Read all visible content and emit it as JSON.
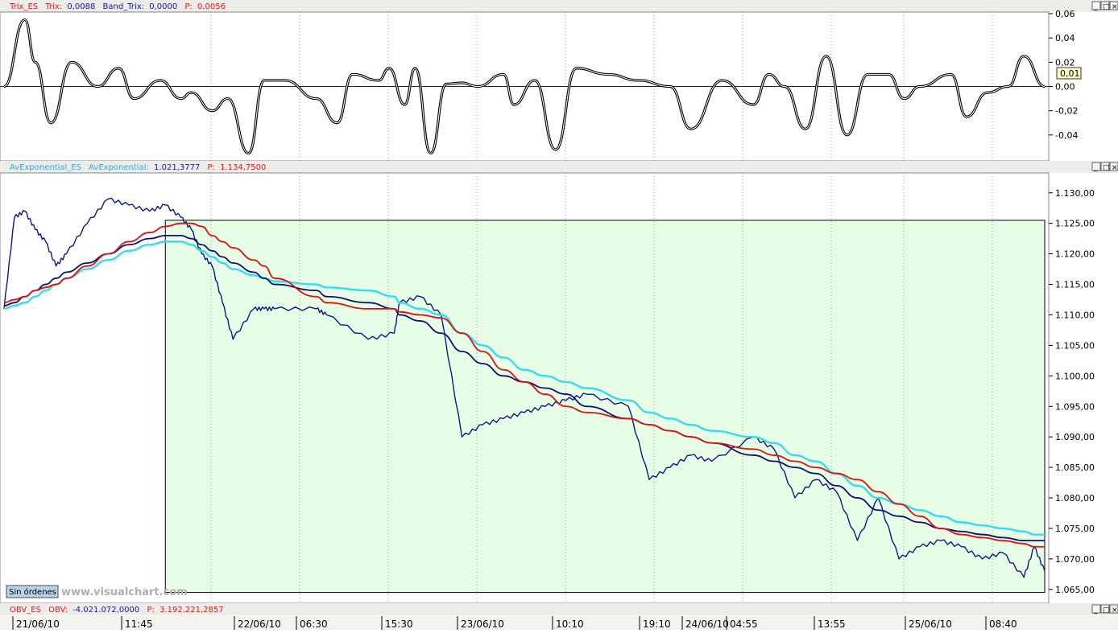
{
  "colors": {
    "background": "#ffffff",
    "header_bg": "#ecece8",
    "trix_line": "#000000",
    "trix_zero_line": "#1a1a8c",
    "price_dark_blue": "#0a1a80",
    "price_black": "#000000",
    "ema_red": "#dd1111",
    "ema_navy": "#101070",
    "ema_cyan": "#33ddee",
    "shaded_region": "#e8fde6",
    "label_red": "#cc2222",
    "label_navy": "#1a1a8c"
  },
  "window_buttons": [
    "_",
    "□",
    "×"
  ],
  "trix_panel": {
    "series_name": "Trix_ES",
    "trix_label": "Trix:",
    "trix_value": "0,0088",
    "band_label": "Band_Trix:",
    "band_value": "0,0000",
    "p_label": "P:",
    "p_value": "0,0056",
    "current_marker": "0,01",
    "y_ticks": [
      "0,06",
      "0,04",
      "0,02",
      "0,00",
      "-0,02",
      "-0,04"
    ]
  },
  "price_panel": {
    "series_name": "AvExponential_ES",
    "av_label": "AvExponential:",
    "av_value": "1.021,3777",
    "p_label": "P:",
    "p_value": "1.134,7500",
    "y_ticks": [
      "1.130,00",
      "1.125,00",
      "1.120,00",
      "1.115,00",
      "1.110,00",
      "1.105,00",
      "1.100,00",
      "1.095,00",
      "1.090,00",
      "1.085,00",
      "1.080,00",
      "1.075,00",
      "1.070,00",
      "1.065,00"
    ],
    "sin_ordenes": "Sin órdenes",
    "watermark": "www.visualchart.com"
  },
  "obv_panel": {
    "series_name": "OBV_ES",
    "obv_label": "OBV:",
    "obv_value": "-4.021.072,0000",
    "p_label": "P:",
    "p_value": "3.192.221,2857"
  },
  "x_axis_labels": [
    "21/06/10",
    "11:45",
    "22/06/10",
    "06:30",
    "15:30",
    "23/06/10",
    "10:10",
    "19:10",
    "24/06/10",
    "04:55",
    "13:55",
    "25/06/10",
    "08:40"
  ],
  "chart_data": [
    {
      "type": "line",
      "name": "Trix_ES",
      "ylim": [
        -0.06,
        0.06
      ],
      "zero_line": 0.0,
      "x": [
        0,
        0.02,
        0.03,
        0.045,
        0.065,
        0.09,
        0.11,
        0.125,
        0.15,
        0.17,
        0.18,
        0.2,
        0.215,
        0.235,
        0.25,
        0.27,
        0.3,
        0.32,
        0.335,
        0.36,
        0.37,
        0.385,
        0.395,
        0.41,
        0.425,
        0.44,
        0.455,
        0.48,
        0.49,
        0.51,
        0.53,
        0.55,
        0.58,
        0.61,
        0.64,
        0.66,
        0.69,
        0.72,
        0.735,
        0.75,
        0.77,
        0.79,
        0.81,
        0.83,
        0.85,
        0.865,
        0.88,
        0.91,
        0.925,
        0.945,
        0.965,
        0.98,
        1.0
      ],
      "values": [
        0.0,
        0.055,
        0.02,
        -0.03,
        0.02,
        0.0,
        0.015,
        -0.01,
        0.005,
        -0.01,
        -0.005,
        -0.02,
        -0.01,
        -0.055,
        0.005,
        0.005,
        -0.01,
        -0.03,
        0.01,
        0.005,
        0.015,
        -0.015,
        0.015,
        -0.055,
        0.002,
        0.003,
        0.0,
        0.01,
        -0.015,
        0.005,
        -0.052,
        0.015,
        0.01,
        0.005,
        0.0,
        -0.035,
        0.005,
        -0.015,
        0.01,
        0.0,
        -0.035,
        0.025,
        -0.04,
        0.01,
        0.01,
        -0.01,
        0.0,
        0.01,
        -0.025,
        -0.005,
        0.0,
        0.025,
        0.0
      ]
    },
    {
      "type": "line",
      "name": "AvExponential_ES",
      "ylim": [
        1063,
        1133
      ],
      "x": [
        0,
        0.01,
        0.02,
        0.03,
        0.04,
        0.05,
        0.06,
        0.08,
        0.1,
        0.12,
        0.14,
        0.155,
        0.17,
        0.18,
        0.19,
        0.2,
        0.21,
        0.22,
        0.24,
        0.25,
        0.26,
        0.3,
        0.31,
        0.35,
        0.375,
        0.38,
        0.4,
        0.42,
        0.44,
        0.46,
        0.48,
        0.5,
        0.52,
        0.54,
        0.56,
        0.6,
        0.62,
        0.64,
        0.66,
        0.68,
        0.72,
        0.74,
        0.76,
        0.78,
        0.8,
        0.82,
        0.84,
        0.86,
        0.88,
        0.9,
        0.92,
        0.94,
        0.96,
        0.98,
        0.99,
        1.0
      ],
      "series": [
        {
          "name": "price",
          "values": [
            1111,
            1126,
            1127,
            1124,
            1122,
            1118,
            1120,
            1125,
            1129,
            1128,
            1127,
            1128,
            1126,
            1124,
            1120,
            1118,
            1112,
            1106,
            1111,
            1111,
            1111,
            1111,
            1110,
            1106,
            1107,
            1112,
            1113,
            1110,
            1090,
            1092,
            1093,
            1094,
            1095,
            1096,
            1097,
            1095,
            1083,
            1085,
            1087,
            1086,
            1090,
            1088,
            1080,
            1083,
            1081,
            1073,
            1080,
            1070,
            1072,
            1073,
            1072,
            1070,
            1071,
            1067,
            1072,
            1068
          ]
        },
        {
          "name": "ema_red",
          "values": [
            1112,
            1112.5,
            1113,
            1114,
            1114.5,
            1115,
            1116,
            1118,
            1120,
            1122,
            1123.5,
            1124.5,
            1125,
            1125,
            1124.5,
            1123,
            1122,
            1121,
            1119,
            1118,
            1116,
            1113,
            1112,
            1111,
            1111,
            1110.5,
            1110,
            1109.5,
            1107,
            1104,
            1101,
            1099,
            1097,
            1095,
            1094,
            1093,
            1092,
            1091,
            1090,
            1089,
            1088,
            1087,
            1086,
            1085,
            1084,
            1083,
            1081,
            1079,
            1077,
            1075,
            1074,
            1073.5,
            1073,
            1072.5,
            1072,
            1072
          ]
        },
        {
          "name": "ema_navy",
          "values": [
            1111.5,
            1112,
            1113,
            1114,
            1115,
            1116,
            1117,
            1118.5,
            1120,
            1121.5,
            1122.5,
            1123,
            1123,
            1122.5,
            1121.5,
            1120.5,
            1119.5,
            1118.5,
            1117,
            1116,
            1115,
            1114,
            1113,
            1112,
            1111,
            1110,
            1109,
            1107,
            1104,
            1102,
            1100,
            1099,
            1098,
            1097,
            1095,
            1093,
            1092,
            1091,
            1090,
            1089,
            1087,
            1086,
            1085,
            1084,
            1082,
            1080,
            1078,
            1077,
            1076,
            1075,
            1074.5,
            1074,
            1073.5,
            1073,
            1073,
            1073
          ]
        },
        {
          "name": "ema_cyan",
          "values": [
            1111,
            1111.5,
            1112,
            1113,
            1114,
            1115,
            1116,
            1117.5,
            1119,
            1120.5,
            1121.5,
            1122,
            1122,
            1121.5,
            1120.5,
            1119.5,
            1118.5,
            1117.5,
            1116.5,
            1116,
            1115.5,
            1115,
            1114.5,
            1114,
            1113,
            1112,
            1111,
            1110,
            1107,
            1105,
            1103,
            1101,
            1100,
            1099,
            1098,
            1096,
            1094,
            1093,
            1092,
            1091,
            1090,
            1089,
            1087,
            1086,
            1084,
            1082,
            1080,
            1079,
            1078,
            1077,
            1076,
            1075.5,
            1075,
            1074.5,
            1074,
            1074
          ]
        }
      ],
      "shaded_region": {
        "x_range": [
          0.155,
          1.0
        ],
        "y_range": [
          1064.5,
          1125.5
        ]
      }
    }
  ]
}
